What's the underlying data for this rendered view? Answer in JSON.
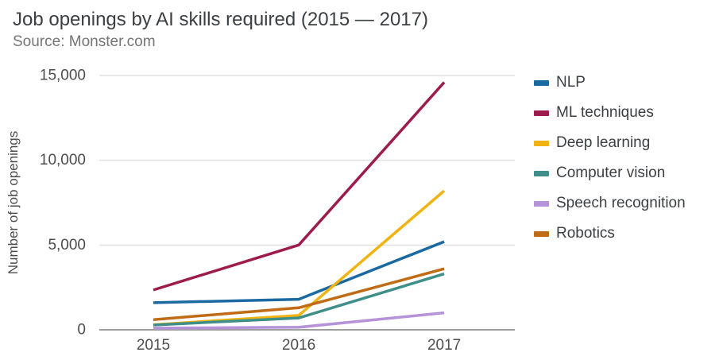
{
  "title": "Job openings by AI skills required (2015 — 2017)",
  "subtitle": "Source: Monster.com",
  "chart_data": {
    "type": "line",
    "title": "Job openings by AI skills required (2015 — 2017)",
    "subtitle": "Source: Monster.com",
    "xlabel": "",
    "ylabel": "Number of job openings",
    "categories": [
      "2015",
      "2016",
      "2017"
    ],
    "series": [
      {
        "name": "NLP",
        "color": "#1b69a1",
        "values": [
          1600,
          1800,
          5200
        ]
      },
      {
        "name": "ML techniques",
        "color": "#9e1b4e",
        "values": [
          2350,
          5000,
          14600
        ]
      },
      {
        "name": "Deep learning",
        "color": "#f0b311",
        "values": [
          300,
          850,
          8200
        ]
      },
      {
        "name": "Computer vision",
        "color": "#3e8e8a",
        "values": [
          280,
          700,
          3300
        ]
      },
      {
        "name": "Speech recognition",
        "color": "#b493d8",
        "values": [
          100,
          150,
          1000
        ]
      },
      {
        "name": "Robotics",
        "color": "#c06b16",
        "values": [
          600,
          1300,
          3600
        ]
      }
    ],
    "ylim": [
      0,
      15000
    ],
    "y_ticks": [
      0,
      5000,
      10000,
      15000
    ],
    "y_tick_labels": [
      "0",
      "5,000",
      "10,000",
      "15,000"
    ],
    "grid": true,
    "legend_position": "right",
    "colors": {
      "grid_line": "#e0e0e0",
      "axis_line": "#9e9e9e",
      "tick_text": "#4d4d4d",
      "axis_label_text": "#4d4d4d"
    }
  }
}
